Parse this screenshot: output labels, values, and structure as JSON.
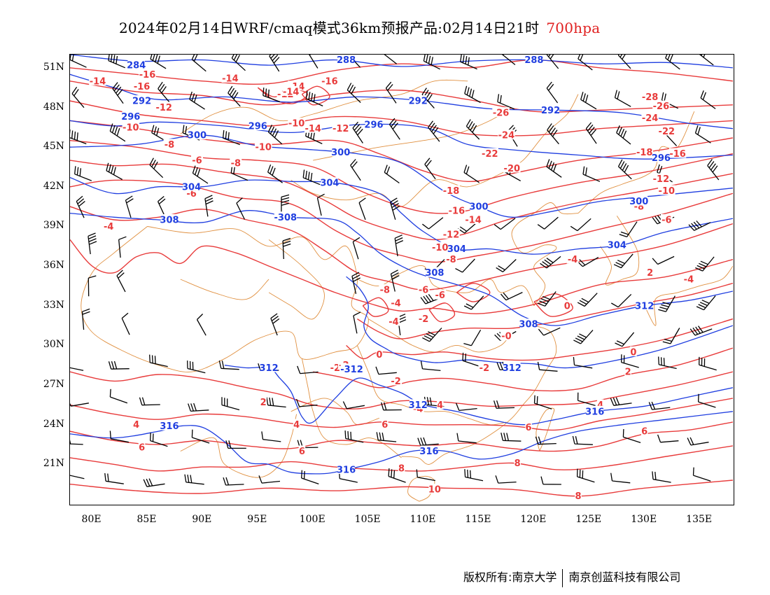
{
  "title": {
    "text": "2024年02月14日WRF/cmaq模式36km预报产品:02月14日21时",
    "level": "700hpa"
  },
  "axes": {
    "y_ticks": [
      "51N",
      "48N",
      "45N",
      "42N",
      "39N",
      "36N",
      "33N",
      "30N",
      "27N",
      "24N",
      "21N"
    ],
    "x_ticks": [
      "80E",
      "85E",
      "90E",
      "95E",
      "100E",
      "105E",
      "110E",
      "115E",
      "120E",
      "125E",
      "130E",
      "135E"
    ],
    "lon_range": [
      78,
      138
    ],
    "lat_range": [
      18,
      52
    ],
    "lat_ticks_values": [
      51,
      48,
      45,
      42,
      39,
      36,
      33,
      30,
      27,
      24,
      21
    ],
    "lon_ticks_values": [
      80,
      85,
      90,
      95,
      100,
      105,
      110,
      115,
      120,
      125,
      130,
      135
    ]
  },
  "colors": {
    "temperature": "#e83b3b",
    "height": "#1f3ee0",
    "border": "#e09040",
    "wind": "#000000"
  },
  "map_data": {
    "temperature_labels": [
      {
        "lon": 80.5,
        "lat": 50.0,
        "text": "-14"
      },
      {
        "lon": 85.0,
        "lat": 50.5,
        "text": "-16"
      },
      {
        "lon": 92.5,
        "lat": 50.2,
        "text": "-14"
      },
      {
        "lon": 97.5,
        "lat": 49.0,
        "text": "-12"
      },
      {
        "lon": 98.5,
        "lat": 49.6,
        "text": "-14"
      },
      {
        "lon": 98.0,
        "lat": 49.2,
        "text": "-14"
      },
      {
        "lon": 101.5,
        "lat": 50.0,
        "text": "-16"
      },
      {
        "lon": 84.5,
        "lat": 49.6,
        "text": "-16"
      },
      {
        "lon": 86.5,
        "lat": 48.0,
        "text": "-12"
      },
      {
        "lon": 83.5,
        "lat": 46.5,
        "text": "-10"
      },
      {
        "lon": 98.5,
        "lat": 46.8,
        "text": "-10"
      },
      {
        "lon": 100.0,
        "lat": 46.4,
        "text": "-14"
      },
      {
        "lon": 102.5,
        "lat": 46.4,
        "text": "-12"
      },
      {
        "lon": 87.0,
        "lat": 45.2,
        "text": "-8"
      },
      {
        "lon": 95.5,
        "lat": 45.0,
        "text": "-10"
      },
      {
        "lon": 89.5,
        "lat": 44.0,
        "text": "-6"
      },
      {
        "lon": 93.0,
        "lat": 43.8,
        "text": "-8"
      },
      {
        "lon": 89.0,
        "lat": 41.5,
        "text": "-6"
      },
      {
        "lon": 81.5,
        "lat": 39.0,
        "text": "-4"
      },
      {
        "lon": 117.0,
        "lat": 47.6,
        "text": "-26"
      },
      {
        "lon": 117.5,
        "lat": 45.9,
        "text": "-24"
      },
      {
        "lon": 116.0,
        "lat": 44.5,
        "text": "-22"
      },
      {
        "lon": 118.0,
        "lat": 43.4,
        "text": "-20"
      },
      {
        "lon": 112.5,
        "lat": 41.7,
        "text": "-18"
      },
      {
        "lon": 113.0,
        "lat": 40.2,
        "text": "-16"
      },
      {
        "lon": 114.5,
        "lat": 39.5,
        "text": "-14"
      },
      {
        "lon": 112.5,
        "lat": 38.4,
        "text": "-12"
      },
      {
        "lon": 111.5,
        "lat": 37.4,
        "text": "-10"
      },
      {
        "lon": 112.5,
        "lat": 36.5,
        "text": "-8"
      },
      {
        "lon": 106.5,
        "lat": 34.2,
        "text": "-8"
      },
      {
        "lon": 110.0,
        "lat": 34.2,
        "text": "-6"
      },
      {
        "lon": 107.5,
        "lat": 33.2,
        "text": "-4"
      },
      {
        "lon": 107.3,
        "lat": 31.8,
        "text": "-4"
      },
      {
        "lon": 110.0,
        "lat": 32.0,
        "text": "-2"
      },
      {
        "lon": 117.5,
        "lat": 30.7,
        "text": "-0"
      },
      {
        "lon": 106.0,
        "lat": 29.3,
        "text": "0"
      },
      {
        "lon": 102.0,
        "lat": 28.3,
        "text": "-2"
      },
      {
        "lon": 115.5,
        "lat": 28.3,
        "text": "-2"
      },
      {
        "lon": 107.5,
        "lat": 27.3,
        "text": "-2"
      },
      {
        "lon": 109.5,
        "lat": 25.2,
        "text": "-4"
      },
      {
        "lon": 123.0,
        "lat": 33.0,
        "text": "0"
      },
      {
        "lon": 129.0,
        "lat": 29.5,
        "text": "0"
      },
      {
        "lon": 128.5,
        "lat": 28.0,
        "text": "2"
      },
      {
        "lon": 130.5,
        "lat": 35.5,
        "text": "2"
      },
      {
        "lon": 134.0,
        "lat": 35.0,
        "text": "-4"
      },
      {
        "lon": 123.5,
        "lat": 36.5,
        "text": "-4"
      },
      {
        "lon": 132.0,
        "lat": 39.5,
        "text": "-6"
      },
      {
        "lon": 129.5,
        "lat": 40.5,
        "text": "-8"
      },
      {
        "lon": 132.0,
        "lat": 41.7,
        "text": "-10"
      },
      {
        "lon": 131.5,
        "lat": 42.6,
        "text": "-12"
      },
      {
        "lon": 133.0,
        "lat": 44.5,
        "text": "-16"
      },
      {
        "lon": 130.0,
        "lat": 44.6,
        "text": "-18"
      },
      {
        "lon": 132.0,
        "lat": 46.2,
        "text": "-22"
      },
      {
        "lon": 130.5,
        "lat": 47.2,
        "text": "-24"
      },
      {
        "lon": 131.5,
        "lat": 48.1,
        "text": "-26"
      },
      {
        "lon": 130.5,
        "lat": 48.8,
        "text": "-28"
      },
      {
        "lon": 126.0,
        "lat": 25.5,
        "text": "4"
      },
      {
        "lon": 130.0,
        "lat": 23.5,
        "text": "6"
      },
      {
        "lon": 119.5,
        "lat": 23.8,
        "text": "6"
      },
      {
        "lon": 111.5,
        "lat": 25.5,
        "text": "4"
      },
      {
        "lon": 98.5,
        "lat": 24.0,
        "text": "4"
      },
      {
        "lon": 84.0,
        "lat": 24.0,
        "text": "4"
      },
      {
        "lon": 95.5,
        "lat": 25.7,
        "text": "2"
      },
      {
        "lon": 106.5,
        "lat": 24.0,
        "text": "6"
      },
      {
        "lon": 84.5,
        "lat": 22.3,
        "text": "6"
      },
      {
        "lon": 99.0,
        "lat": 22.0,
        "text": "6"
      },
      {
        "lon": 102.5,
        "lat": 20.6,
        "text": "8"
      },
      {
        "lon": 108.0,
        "lat": 20.7,
        "text": "8"
      },
      {
        "lon": 118.5,
        "lat": 21.1,
        "text": "8"
      },
      {
        "lon": 111.0,
        "lat": 19.1,
        "text": "10"
      },
      {
        "lon": 124.0,
        "lat": 18.6,
        "text": "8"
      },
      {
        "lon": 102.8,
        "lat": 28.5,
        "text": "-2"
      },
      {
        "lon": 111.5,
        "lat": 33.8,
        "text": "-6"
      }
    ],
    "height_labels": [
      {
        "lon": 84.0,
        "lat": 51.2,
        "text": "284"
      },
      {
        "lon": 84.5,
        "lat": 48.5,
        "text": "292"
      },
      {
        "lon": 83.5,
        "lat": 47.3,
        "text": "296"
      },
      {
        "lon": 95.0,
        "lat": 46.6,
        "text": "296"
      },
      {
        "lon": 89.5,
        "lat": 45.9,
        "text": "300"
      },
      {
        "lon": 103.0,
        "lat": 51.6,
        "text": "288"
      },
      {
        "lon": 109.5,
        "lat": 48.5,
        "text": "292"
      },
      {
        "lon": 105.5,
        "lat": 46.7,
        "text": "296"
      },
      {
        "lon": 102.5,
        "lat": 44.6,
        "text": "300"
      },
      {
        "lon": 120.0,
        "lat": 51.6,
        "text": "288"
      },
      {
        "lon": 121.5,
        "lat": 47.8,
        "text": "292"
      },
      {
        "lon": 131.5,
        "lat": 44.2,
        "text": "296"
      },
      {
        "lon": 89.0,
        "lat": 42.0,
        "text": "304"
      },
      {
        "lon": 101.5,
        "lat": 42.3,
        "text": "304"
      },
      {
        "lon": 115.0,
        "lat": 40.5,
        "text": "300"
      },
      {
        "lon": 129.5,
        "lat": 40.9,
        "text": "300"
      },
      {
        "lon": 127.5,
        "lat": 37.6,
        "text": "304"
      },
      {
        "lon": 87.0,
        "lat": 39.5,
        "text": "308"
      },
      {
        "lon": 97.5,
        "lat": 39.7,
        "text": "-308"
      },
      {
        "lon": 113.0,
        "lat": 37.3,
        "text": "304"
      },
      {
        "lon": 111.0,
        "lat": 35.5,
        "text": "308"
      },
      {
        "lon": 119.5,
        "lat": 31.6,
        "text": "308"
      },
      {
        "lon": 130.0,
        "lat": 33.0,
        "text": "312"
      },
      {
        "lon": 96.0,
        "lat": 28.3,
        "text": "312"
      },
      {
        "lon": 103.5,
        "lat": 28.2,
        "text": "-312"
      },
      {
        "lon": 109.5,
        "lat": 25.5,
        "text": "312"
      },
      {
        "lon": 118.0,
        "lat": 28.3,
        "text": "312"
      },
      {
        "lon": 125.5,
        "lat": 25.0,
        "text": "316"
      },
      {
        "lon": 87.0,
        "lat": 23.9,
        "text": "316"
      },
      {
        "lon": 110.5,
        "lat": 22.0,
        "text": "316"
      },
      {
        "lon": 103.0,
        "lat": 20.6,
        "text": "316"
      }
    ]
  },
  "copyright": {
    "left": "版权所有:南京大学",
    "right": "南京创蓝科技有限公司"
  }
}
